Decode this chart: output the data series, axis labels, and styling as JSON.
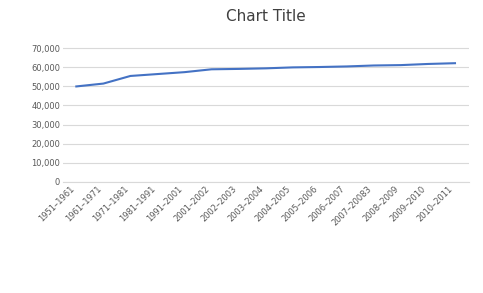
{
  "title": "Chart Title",
  "categories": [
    "1951–1961",
    "1961–1971",
    "1971–1981",
    "1981–1991",
    "1991–2001",
    "2001–2002",
    "2002–2003",
    "2003–2004",
    "2004–2005",
    "2005–2006",
    "2006–2007",
    "2007–20083",
    "2008–2009",
    "2009–2010",
    "2010–2011"
  ],
  "values": [
    50000,
    51500,
    55500,
    56500,
    57500,
    59000,
    59200,
    59500,
    60000,
    60200,
    60500,
    61000,
    61200,
    61800,
    62200
  ],
  "line_color": "#4472C4",
  "line_width": 1.5,
  "ylim": [
    0,
    80000
  ],
  "yticks": [
    0,
    10000,
    20000,
    30000,
    40000,
    50000,
    60000,
    70000
  ],
  "background_color": "#ffffff",
  "plot_bg_color": "#ffffff",
  "grid_color": "#d9d9d9",
  "title_fontsize": 11,
  "tick_fontsize": 6.0,
  "title_color": "#404040",
  "title_font": "DejaVu Sans"
}
